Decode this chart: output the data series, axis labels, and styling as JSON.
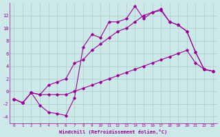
{
  "xlabel": "Windchill (Refroidissement éolien,°C)",
  "bg_color": "#cce8e8",
  "line_color": "#990099",
  "grid_color": "#aacccc",
  "xlim": [
    -0.5,
    23.5
  ],
  "ylim": [
    -5.0,
    14.0
  ],
  "xticks": [
    0,
    1,
    2,
    3,
    4,
    5,
    6,
    7,
    8,
    9,
    10,
    11,
    12,
    13,
    14,
    15,
    16,
    17,
    18,
    19,
    20,
    21,
    22,
    23
  ],
  "yticks": [
    -4,
    -2,
    0,
    2,
    4,
    6,
    8,
    10,
    12
  ],
  "line1_x": [
    0,
    1,
    2,
    3,
    4,
    5,
    6,
    7,
    8,
    9,
    10,
    11,
    12,
    13,
    14,
    15,
    16,
    17,
    18,
    19,
    20,
    21,
    22,
    23
  ],
  "line1_y": [
    -1.2,
    -1.8,
    -0.2,
    -2.2,
    -3.3,
    -3.5,
    -3.8,
    -1.0,
    7.0,
    9.0,
    8.5,
    11.0,
    11.0,
    11.5,
    13.5,
    11.5,
    12.5,
    13.0,
    11.0,
    10.5,
    9.5,
    6.2,
    3.5,
    3.2
  ],
  "line2_x": [
    0,
    1,
    2,
    3,
    4,
    5,
    6,
    7,
    8,
    9,
    10,
    11,
    12,
    13,
    14,
    15,
    16,
    17,
    18,
    19,
    20,
    21,
    22,
    23
  ],
  "line2_y": [
    -1.2,
    -1.8,
    -0.2,
    -0.5,
    1.0,
    1.5,
    2.0,
    4.5,
    5.0,
    6.5,
    7.5,
    8.5,
    9.5,
    10.0,
    11.0,
    12.0,
    12.5,
    12.8,
    11.0,
    10.5,
    9.5,
    6.2,
    3.5,
    3.2
  ],
  "line3_x": [
    0,
    1,
    2,
    3,
    4,
    5,
    6,
    7,
    8,
    9,
    10,
    11,
    12,
    13,
    14,
    15,
    16,
    17,
    18,
    19,
    20,
    21,
    22,
    23
  ],
  "line3_y": [
    -1.2,
    -1.8,
    -0.2,
    -0.5,
    -0.5,
    -0.5,
    -0.5,
    0.0,
    0.5,
    1.0,
    1.5,
    2.0,
    2.5,
    3.0,
    3.5,
    4.0,
    4.5,
    5.0,
    5.5,
    6.0,
    6.5,
    4.5,
    3.5,
    3.2
  ]
}
